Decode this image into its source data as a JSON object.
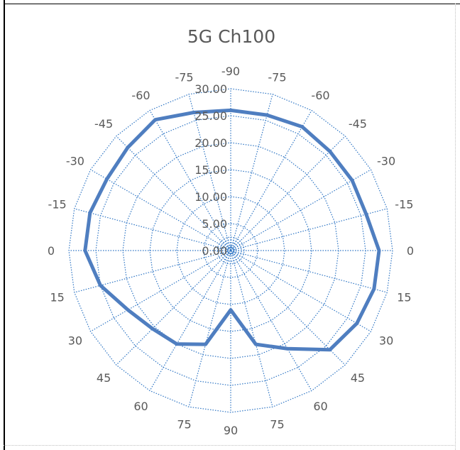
{
  "chart_data": {
    "type": "radar",
    "title": "5G Ch100",
    "angle_labels": [
      "-90",
      "-75",
      "-60",
      "-45",
      "-30",
      "-15",
      "0",
      "15",
      "30",
      "45",
      "60",
      "75",
      "90",
      "75",
      "60",
      "45",
      "30",
      "15",
      "0",
      "-15",
      "-30",
      "-45",
      "-60",
      "-75"
    ],
    "radial_ticks": [
      "0.00",
      "5.00",
      "10.00",
      "15.00",
      "20.00",
      "25.00",
      "30.00"
    ],
    "rlim": [
      0,
      30
    ],
    "grid": true,
    "series": [
      {
        "values": [
          26,
          26,
          26.5,
          26,
          26,
          26,
          27.5,
          27.5,
          27,
          26,
          21,
          18,
          11,
          18,
          20,
          20.5,
          22,
          25,
          27,
          27,
          26.5,
          27,
          28,
          26.5
        ],
        "color": "#4f7ec0"
      }
    ],
    "colors": {
      "grid": "#2e75c4",
      "line": "#4f7ec0",
      "text": "#595959"
    }
  }
}
